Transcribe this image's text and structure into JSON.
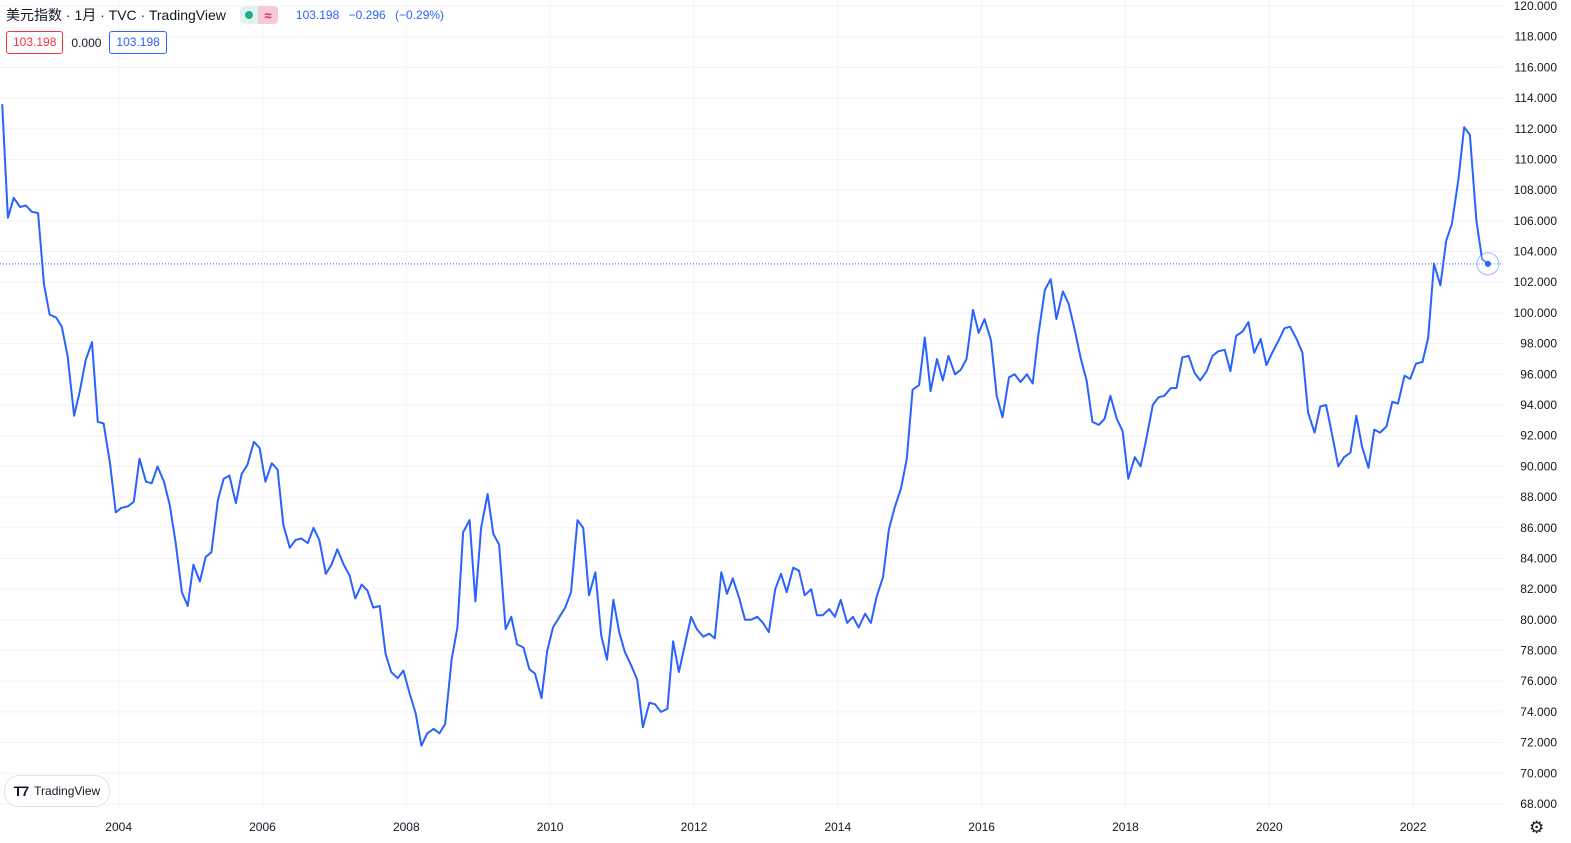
{
  "header": {
    "title": "美元指数 · 1月 · TVC · TradingView",
    "last_price": "103.198",
    "change": "−0.296",
    "change_pct": "(−0.29%)",
    "delayed_symbol": "≈"
  },
  "values_row": {
    "left_value": "103.198",
    "mid_value": "0.000",
    "right_value": "103.198"
  },
  "price_tag": "103.198",
  "watermark": {
    "text": "TradingView"
  },
  "icons": {
    "settings": "gear-icon",
    "market_status": "dot-icon",
    "delayed": "approx-icon"
  },
  "colors": {
    "line": "#2962ff",
    "grid": "#f0f3fa",
    "down": "#f23645",
    "open": "#22ab94"
  },
  "chart_data": {
    "type": "line",
    "title": "美元指数 · 1月 · TVC",
    "xlabel": "",
    "ylabel": "",
    "x_ticks": [
      "2004",
      "2006",
      "2008",
      "2010",
      "2012",
      "2014",
      "2016",
      "2018",
      "2020",
      "2022"
    ],
    "y_ticks": [
      "68.000",
      "70.000",
      "72.000",
      "74.000",
      "76.000",
      "78.000",
      "80.000",
      "82.000",
      "84.000",
      "86.000",
      "88.000",
      "90.000",
      "92.000",
      "94.000",
      "96.000",
      "98.000",
      "100.000",
      "102.000",
      "104.000",
      "106.000",
      "108.000",
      "110.000",
      "112.000",
      "114.000",
      "116.000",
      "118.000",
      "120.000"
    ],
    "ylim": [
      68,
      120
    ],
    "xlim": [
      2002.35,
      2023.25
    ],
    "grid": true,
    "last_value": 103.198,
    "series": [
      {
        "values": [
          [
            2002.38,
            113.6
          ],
          [
            2002.46,
            106.2
          ],
          [
            2002.54,
            107.5
          ],
          [
            2002.63,
            106.9
          ],
          [
            2002.71,
            107.0
          ],
          [
            2002.79,
            106.6
          ],
          [
            2002.88,
            106.5
          ],
          [
            2002.96,
            101.9
          ],
          [
            2003.04,
            99.9
          ],
          [
            2003.13,
            99.7
          ],
          [
            2003.21,
            99.1
          ],
          [
            2003.29,
            97.2
          ],
          [
            2003.38,
            93.3
          ],
          [
            2003.46,
            94.9
          ],
          [
            2003.54,
            96.9
          ],
          [
            2003.63,
            98.1
          ],
          [
            2003.71,
            92.9
          ],
          [
            2003.79,
            92.8
          ],
          [
            2003.88,
            90.2
          ],
          [
            2003.96,
            87.0
          ],
          [
            2004.04,
            87.3
          ],
          [
            2004.13,
            87.4
          ],
          [
            2004.21,
            87.7
          ],
          [
            2004.29,
            90.5
          ],
          [
            2004.38,
            89.0
          ],
          [
            2004.46,
            88.9
          ],
          [
            2004.54,
            90.0
          ],
          [
            2004.63,
            89.0
          ],
          [
            2004.71,
            87.5
          ],
          [
            2004.79,
            85.1
          ],
          [
            2004.88,
            81.8
          ],
          [
            2004.96,
            80.9
          ],
          [
            2005.04,
            83.6
          ],
          [
            2005.13,
            82.5
          ],
          [
            2005.21,
            84.1
          ],
          [
            2005.29,
            84.4
          ],
          [
            2005.38,
            87.8
          ],
          [
            2005.46,
            89.2
          ],
          [
            2005.54,
            89.4
          ],
          [
            2005.63,
            87.6
          ],
          [
            2005.71,
            89.5
          ],
          [
            2005.79,
            90.1
          ],
          [
            2005.88,
            91.6
          ],
          [
            2005.96,
            91.2
          ],
          [
            2006.04,
            89.0
          ],
          [
            2006.13,
            90.2
          ],
          [
            2006.21,
            89.8
          ],
          [
            2006.29,
            86.2
          ],
          [
            2006.38,
            84.7
          ],
          [
            2006.46,
            85.2
          ],
          [
            2006.54,
            85.3
          ],
          [
            2006.63,
            85.0
          ],
          [
            2006.71,
            86.0
          ],
          [
            2006.79,
            85.2
          ],
          [
            2006.88,
            83.0
          ],
          [
            2006.96,
            83.6
          ],
          [
            2007.04,
            84.6
          ],
          [
            2007.13,
            83.6
          ],
          [
            2007.21,
            82.9
          ],
          [
            2007.29,
            81.4
          ],
          [
            2007.38,
            82.3
          ],
          [
            2007.46,
            81.9
          ],
          [
            2007.54,
            80.8
          ],
          [
            2007.63,
            80.9
          ],
          [
            2007.71,
            77.8
          ],
          [
            2007.79,
            76.6
          ],
          [
            2007.88,
            76.2
          ],
          [
            2007.96,
            76.7
          ],
          [
            2008.04,
            75.3
          ],
          [
            2008.13,
            73.9
          ],
          [
            2008.21,
            71.8
          ],
          [
            2008.29,
            72.6
          ],
          [
            2008.38,
            72.9
          ],
          [
            2008.46,
            72.6
          ],
          [
            2008.54,
            73.2
          ],
          [
            2008.63,
            77.4
          ],
          [
            2008.71,
            79.5
          ],
          [
            2008.79,
            85.7
          ],
          [
            2008.88,
            86.5
          ],
          [
            2008.96,
            81.2
          ],
          [
            2009.04,
            86.0
          ],
          [
            2009.13,
            88.2
          ],
          [
            2009.21,
            85.6
          ],
          [
            2009.29,
            84.9
          ],
          [
            2009.38,
            79.4
          ],
          [
            2009.46,
            80.2
          ],
          [
            2009.54,
            78.4
          ],
          [
            2009.63,
            78.2
          ],
          [
            2009.71,
            76.8
          ],
          [
            2009.79,
            76.5
          ],
          [
            2009.88,
            74.9
          ],
          [
            2009.96,
            78.0
          ],
          [
            2010.04,
            79.5
          ],
          [
            2010.13,
            80.2
          ],
          [
            2010.21,
            80.8
          ],
          [
            2010.29,
            81.8
          ],
          [
            2010.38,
            86.5
          ],
          [
            2010.46,
            86.0
          ],
          [
            2010.54,
            81.6
          ],
          [
            2010.63,
            83.1
          ],
          [
            2010.71,
            79.0
          ],
          [
            2010.79,
            77.4
          ],
          [
            2010.88,
            81.3
          ],
          [
            2010.96,
            79.2
          ],
          [
            2011.04,
            77.9
          ],
          [
            2011.13,
            77.0
          ],
          [
            2011.21,
            76.1
          ],
          [
            2011.29,
            73.0
          ],
          [
            2011.38,
            74.6
          ],
          [
            2011.46,
            74.5
          ],
          [
            2011.54,
            74.0
          ],
          [
            2011.63,
            74.2
          ],
          [
            2011.71,
            78.6
          ],
          [
            2011.79,
            76.6
          ],
          [
            2011.88,
            78.5
          ],
          [
            2011.96,
            80.2
          ],
          [
            2012.04,
            79.4
          ],
          [
            2012.13,
            78.9
          ],
          [
            2012.21,
            79.1
          ],
          [
            2012.29,
            78.8
          ],
          [
            2012.38,
            83.1
          ],
          [
            2012.46,
            81.7
          ],
          [
            2012.54,
            82.7
          ],
          [
            2012.63,
            81.4
          ],
          [
            2012.71,
            80.0
          ],
          [
            2012.79,
            80.0
          ],
          [
            2012.88,
            80.2
          ],
          [
            2012.96,
            79.8
          ],
          [
            2013.04,
            79.2
          ],
          [
            2013.13,
            82.0
          ],
          [
            2013.21,
            83.0
          ],
          [
            2013.29,
            81.8
          ],
          [
            2013.38,
            83.4
          ],
          [
            2013.46,
            83.2
          ],
          [
            2013.54,
            81.6
          ],
          [
            2013.63,
            82.0
          ],
          [
            2013.71,
            80.3
          ],
          [
            2013.79,
            80.3
          ],
          [
            2013.88,
            80.7
          ],
          [
            2013.96,
            80.2
          ],
          [
            2014.04,
            81.3
          ],
          [
            2014.13,
            79.8
          ],
          [
            2014.21,
            80.2
          ],
          [
            2014.29,
            79.5
          ],
          [
            2014.38,
            80.4
          ],
          [
            2014.46,
            79.8
          ],
          [
            2014.54,
            81.5
          ],
          [
            2014.63,
            82.8
          ],
          [
            2014.71,
            85.9
          ],
          [
            2014.79,
            87.3
          ],
          [
            2014.88,
            88.6
          ],
          [
            2014.96,
            90.5
          ],
          [
            2015.04,
            95.0
          ],
          [
            2015.13,
            95.3
          ],
          [
            2015.21,
            98.4
          ],
          [
            2015.29,
            94.9
          ],
          [
            2015.38,
            97.0
          ],
          [
            2015.46,
            95.6
          ],
          [
            2015.54,
            97.2
          ],
          [
            2015.63,
            96.0
          ],
          [
            2015.71,
            96.3
          ],
          [
            2015.79,
            97.0
          ],
          [
            2015.88,
            100.2
          ],
          [
            2015.96,
            98.7
          ],
          [
            2016.04,
            99.6
          ],
          [
            2016.13,
            98.2
          ],
          [
            2016.21,
            94.6
          ],
          [
            2016.29,
            93.2
          ],
          [
            2016.38,
            95.8
          ],
          [
            2016.46,
            96.0
          ],
          [
            2016.54,
            95.5
          ],
          [
            2016.63,
            96.0
          ],
          [
            2016.71,
            95.4
          ],
          [
            2016.79,
            98.6
          ],
          [
            2016.88,
            101.5
          ],
          [
            2016.96,
            102.2
          ],
          [
            2017.04,
            99.6
          ],
          [
            2017.13,
            101.4
          ],
          [
            2017.21,
            100.6
          ],
          [
            2017.29,
            99.0
          ],
          [
            2017.38,
            97.0
          ],
          [
            2017.46,
            95.6
          ],
          [
            2017.54,
            92.9
          ],
          [
            2017.63,
            92.7
          ],
          [
            2017.71,
            93.1
          ],
          [
            2017.79,
            94.6
          ],
          [
            2017.88,
            93.1
          ],
          [
            2017.96,
            92.3
          ],
          [
            2018.04,
            89.2
          ],
          [
            2018.13,
            90.6
          ],
          [
            2018.21,
            90.0
          ],
          [
            2018.29,
            91.8
          ],
          [
            2018.38,
            94.0
          ],
          [
            2018.46,
            94.5
          ],
          [
            2018.54,
            94.6
          ],
          [
            2018.63,
            95.1
          ],
          [
            2018.71,
            95.1
          ],
          [
            2018.79,
            97.1
          ],
          [
            2018.88,
            97.2
          ],
          [
            2018.96,
            96.1
          ],
          [
            2019.04,
            95.6
          ],
          [
            2019.13,
            96.2
          ],
          [
            2019.21,
            97.2
          ],
          [
            2019.29,
            97.5
          ],
          [
            2019.38,
            97.6
          ],
          [
            2019.46,
            96.2
          ],
          [
            2019.54,
            98.5
          ],
          [
            2019.63,
            98.8
          ],
          [
            2019.71,
            99.4
          ],
          [
            2019.79,
            97.4
          ],
          [
            2019.88,
            98.3
          ],
          [
            2019.96,
            96.6
          ],
          [
            2020.04,
            97.4
          ],
          [
            2020.13,
            98.2
          ],
          [
            2020.21,
            99.0
          ],
          [
            2020.29,
            99.1
          ],
          [
            2020.38,
            98.3
          ],
          [
            2020.46,
            97.4
          ],
          [
            2020.54,
            93.5
          ],
          [
            2020.63,
            92.2
          ],
          [
            2020.71,
            93.9
          ],
          [
            2020.79,
            94.0
          ],
          [
            2020.88,
            91.9
          ],
          [
            2020.96,
            90.0
          ],
          [
            2021.04,
            90.6
          ],
          [
            2021.13,
            90.9
          ],
          [
            2021.21,
            93.3
          ],
          [
            2021.29,
            91.3
          ],
          [
            2021.38,
            89.9
          ],
          [
            2021.46,
            92.4
          ],
          [
            2021.54,
            92.2
          ],
          [
            2021.63,
            92.6
          ],
          [
            2021.71,
            94.2
          ],
          [
            2021.79,
            94.1
          ],
          [
            2021.88,
            95.9
          ],
          [
            2021.96,
            95.7
          ],
          [
            2022.04,
            96.7
          ],
          [
            2022.13,
            96.8
          ],
          [
            2022.21,
            98.4
          ],
          [
            2022.29,
            103.2
          ],
          [
            2022.38,
            101.8
          ],
          [
            2022.46,
            104.7
          ],
          [
            2022.54,
            105.8
          ],
          [
            2022.63,
            108.7
          ],
          [
            2022.71,
            112.1
          ],
          [
            2022.79,
            111.6
          ],
          [
            2022.88,
            106.0
          ],
          [
            2022.96,
            103.5
          ],
          [
            2023.04,
            103.2
          ]
        ]
      }
    ]
  }
}
